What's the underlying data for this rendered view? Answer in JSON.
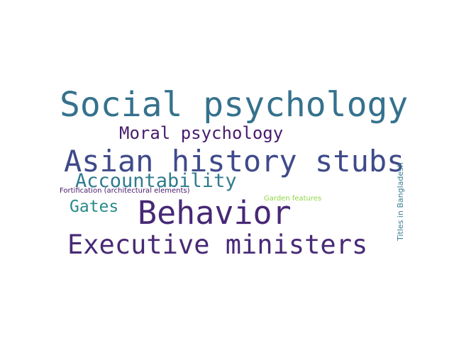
{
  "words": [
    {
      "text": "Social psychology",
      "color": "#35718d"
    },
    {
      "text": "Moral psychology",
      "color": "#481c6e"
    },
    {
      "text": "Asian history stubs",
      "color": "#3f4a8a"
    },
    {
      "text": "Accountability",
      "color": "#2f7b8e"
    },
    {
      "text": "Fortification (architectural elements)",
      "color": "#46186b"
    },
    {
      "text": "Garden features",
      "color": "#8fd744"
    },
    {
      "text": "Gates",
      "color": "#2a8a8a"
    },
    {
      "text": "Behavior",
      "color": "#472875"
    },
    {
      "text": "Executive ministers",
      "color": "#482a76"
    },
    {
      "text": "Titles in Bangladesh",
      "color": "#3a7c93"
    }
  ]
}
